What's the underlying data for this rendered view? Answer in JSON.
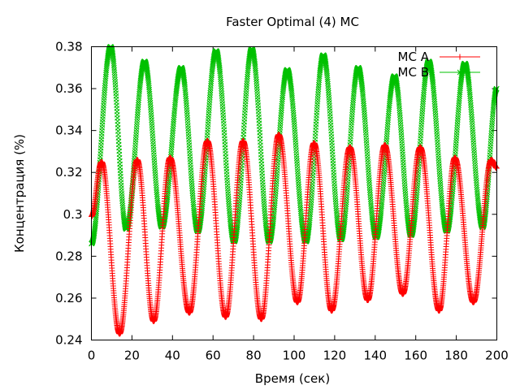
{
  "chart_data": {
    "type": "scatter",
    "title": "Faster Optimal (4) MC",
    "xlabel": "Время (сек)",
    "ylabel": "Концентрация (%)",
    "xlim": [
      0,
      200
    ],
    "ylim": [
      0.24,
      0.38
    ],
    "xticks": [
      0,
      20,
      40,
      60,
      80,
      100,
      120,
      140,
      160,
      180,
      200
    ],
    "yticks": [
      0.24,
      0.26,
      0.28,
      0.3,
      0.32,
      0.34,
      0.36,
      0.38
    ],
    "xtick_labels": [
      "0",
      "20",
      "40",
      "60",
      "80",
      "100",
      "120",
      "140",
      "160",
      "180",
      "200"
    ],
    "ytick_labels": [
      "0.24",
      "0.26",
      "0.28",
      "0.3",
      "0.32",
      "0.34",
      "0.36",
      "0.38"
    ],
    "grid": false,
    "legend_position": "top-right",
    "series": [
      {
        "name": "MC A",
        "marker": "plus",
        "color": "#ff0000",
        "peaks": [
          [
            0.0,
            0.299
          ],
          [
            5.0,
            0.325
          ],
          [
            13.9,
            0.243
          ],
          [
            22.6,
            0.326
          ],
          [
            30.7,
            0.249
          ],
          [
            38.8,
            0.327
          ],
          [
            48.3,
            0.253
          ],
          [
            57.2,
            0.335
          ],
          [
            66.2,
            0.251
          ],
          [
            74.8,
            0.335
          ],
          [
            83.8,
            0.25
          ],
          [
            92.4,
            0.338
          ],
          [
            101.6,
            0.258
          ],
          [
            109.8,
            0.334
          ],
          [
            118.5,
            0.254
          ],
          [
            127.5,
            0.332
          ],
          [
            136.3,
            0.259
          ],
          [
            144.7,
            0.333
          ],
          [
            153.6,
            0.262
          ],
          [
            162.2,
            0.332
          ],
          [
            171.5,
            0.254
          ],
          [
            179.3,
            0.327
          ],
          [
            188.4,
            0.258
          ],
          [
            197.3,
            0.326
          ],
          [
            200.0,
            0.322
          ]
        ]
      },
      {
        "name": "MC B",
        "marker": "cross",
        "color": "#00c000",
        "peaks": [
          [
            0.0,
            0.286
          ],
          [
            9.5,
            0.38
          ],
          [
            17.2,
            0.293
          ],
          [
            26.2,
            0.373
          ],
          [
            34.8,
            0.294
          ],
          [
            44.3,
            0.37
          ],
          [
            52.5,
            0.292
          ],
          [
            61.5,
            0.378
          ],
          [
            70.4,
            0.287
          ],
          [
            79.1,
            0.379
          ],
          [
            87.7,
            0.287
          ],
          [
            96.6,
            0.369
          ],
          [
            105.8,
            0.287
          ],
          [
            114.4,
            0.376
          ],
          [
            123.1,
            0.288
          ],
          [
            131.6,
            0.37
          ],
          [
            140.5,
            0.289
          ],
          [
            149.5,
            0.366
          ],
          [
            157.7,
            0.29
          ],
          [
            166.4,
            0.373
          ],
          [
            175.3,
            0.292
          ],
          [
            184.2,
            0.372
          ],
          [
            193.0,
            0.294
          ],
          [
            200.0,
            0.36
          ]
        ]
      }
    ]
  }
}
